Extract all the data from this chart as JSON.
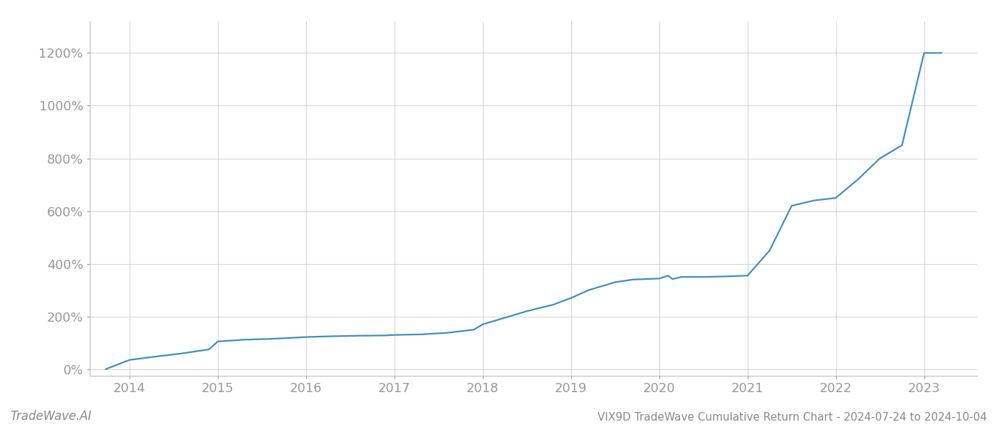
{
  "title": "VIX9D TradeWave Cumulative Return Chart - 2024-07-24 to 2024-10-04",
  "watermark": "TradeWave.AI",
  "line_color": "#3d8fc0",
  "background_color": "#ffffff",
  "grid_color": "#cccccc",
  "x_values": [
    2013.73,
    2014.0,
    2014.3,
    2014.6,
    2014.9,
    2015.0,
    2015.3,
    2015.6,
    2015.9,
    2016.0,
    2016.3,
    2016.6,
    2016.9,
    2017.0,
    2017.3,
    2017.6,
    2017.9,
    2018.0,
    2018.3,
    2018.5,
    2018.8,
    2019.0,
    2019.2,
    2019.5,
    2019.7,
    2019.85,
    2020.0,
    2020.1,
    2020.15,
    2020.25,
    2020.5,
    2020.75,
    2021.0,
    2021.25,
    2021.5,
    2021.75,
    2022.0,
    2022.25,
    2022.5,
    2022.75,
    2023.0,
    2023.2
  ],
  "y_values": [
    0.0,
    0.35,
    0.48,
    0.6,
    0.75,
    1.05,
    1.12,
    1.15,
    1.2,
    1.22,
    1.25,
    1.27,
    1.28,
    1.3,
    1.32,
    1.38,
    1.5,
    1.7,
    2.0,
    2.2,
    2.45,
    2.7,
    3.0,
    3.3,
    3.4,
    3.42,
    3.44,
    3.55,
    3.42,
    3.5,
    3.5,
    3.52,
    3.55,
    4.5,
    6.2,
    6.4,
    6.5,
    7.2,
    8.0,
    8.5,
    12.0,
    12.0
  ],
  "xlim": [
    2013.55,
    2023.6
  ],
  "ylim": [
    -0.25,
    13.2
  ],
  "yticks": [
    0,
    2,
    4,
    6,
    8,
    10,
    12
  ],
  "ytick_labels": [
    "0%",
    "200%",
    "400%",
    "600%",
    "800%",
    "1000%",
    "1200%"
  ],
  "xticks": [
    2014,
    2015,
    2016,
    2017,
    2018,
    2019,
    2020,
    2021,
    2022,
    2023
  ],
  "xtick_labels": [
    "2014",
    "2015",
    "2016",
    "2017",
    "2018",
    "2019",
    "2020",
    "2021",
    "2022",
    "2023"
  ],
  "tick_color": "#999999",
  "label_color": "#888888",
  "spine_color": "#bbbbbb",
  "line_width": 1.6,
  "title_fontsize": 11,
  "tick_fontsize": 13,
  "watermark_fontsize": 12
}
